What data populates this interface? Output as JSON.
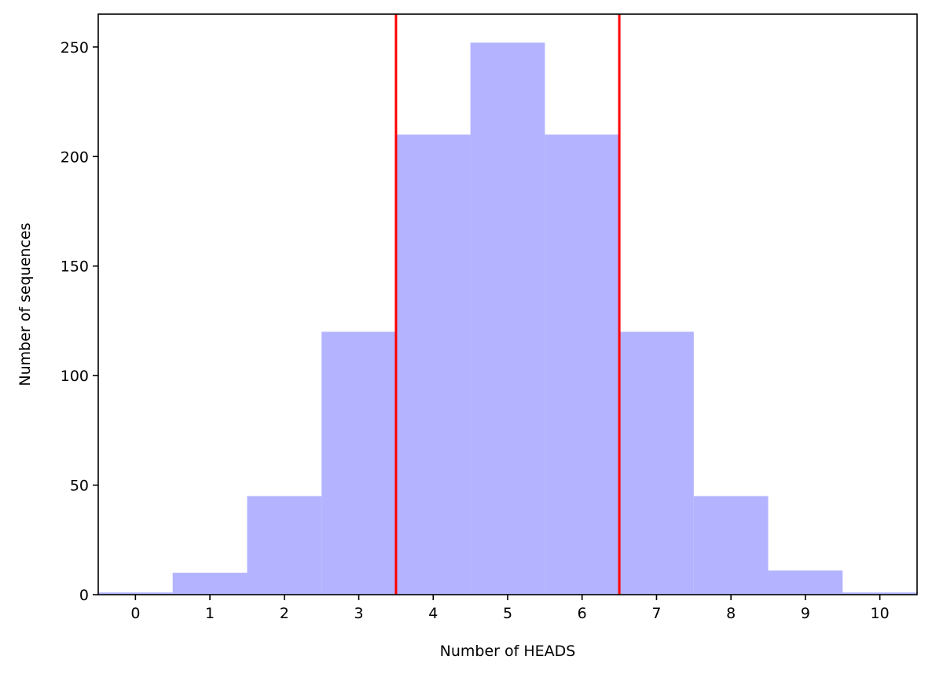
{
  "chart_data": {
    "type": "bar",
    "title": "",
    "xlabel": "Number of HEADS",
    "ylabel": "Number of sequences",
    "categories": [
      "0",
      "1",
      "2",
      "3",
      "4",
      "5",
      "6",
      "7",
      "8",
      "9",
      "10"
    ],
    "x": [
      0,
      1,
      2,
      3,
      4,
      5,
      6,
      7,
      8,
      9,
      10
    ],
    "values": [
      1,
      10,
      45,
      120,
      210,
      252,
      210,
      120,
      45,
      11,
      1
    ],
    "bar_width": 1,
    "bar_color": "#b3b3ff",
    "xlim": [
      -0.5,
      10.5
    ],
    "ylim": [
      0,
      265
    ],
    "yticks": [
      0,
      50,
      100,
      150,
      200,
      250
    ],
    "grid": false,
    "vertical_lines": [
      {
        "x": 3.5,
        "color": "#ff0000"
      },
      {
        "x": 6.5,
        "color": "#ff0000"
      }
    ]
  }
}
